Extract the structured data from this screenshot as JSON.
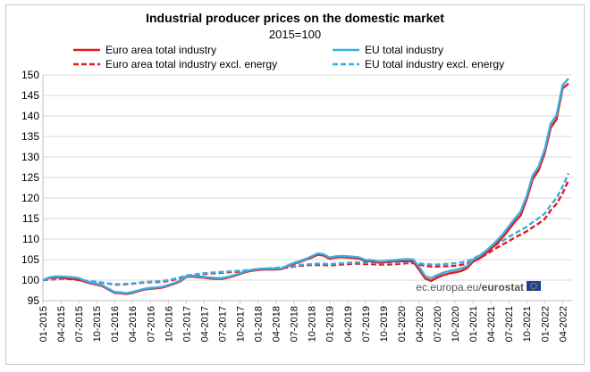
{
  "chart_data": {
    "type": "line",
    "title": "Industrial producer prices on the domestic market",
    "subtitle": "2015=100",
    "xlabel": "",
    "ylabel": "",
    "ylim": [
      95,
      150
    ],
    "yticks": [
      95,
      100,
      105,
      110,
      115,
      120,
      125,
      130,
      135,
      140,
      145,
      150
    ],
    "xtick_labels": [
      "01-2015",
      "04-2015",
      "07-2015",
      "10-2015",
      "01-2016",
      "04-2016",
      "07-2016",
      "10-2016",
      "01-2017",
      "04-2017",
      "07-2017",
      "10-2017",
      "01-2018",
      "04-2018",
      "07-2018",
      "10-2018",
      "01-2019",
      "04-2019",
      "07-2019",
      "10-2019",
      "01-2020",
      "04-2020",
      "07-2020",
      "10-2020",
      "01-2021",
      "04-2021",
      "07-2021",
      "10-2021",
      "01-2022",
      "04-2022"
    ],
    "grid": "horizontal",
    "legend_position": "top",
    "source": {
      "prefix": "ec.europa.eu/",
      "brand": "eurostat"
    },
    "colors": {
      "euro_area": "#e31a1c",
      "eu": "#3aaee0"
    },
    "series": [
      {
        "name": "Euro area total industry",
        "style": "solid",
        "color": "#e31a1c",
        "values": [
          100.0,
          100.5,
          100.6,
          100.6,
          100.4,
          100.3,
          100.1,
          99.6,
          99.2,
          98.9,
          98.5,
          97.7,
          96.9,
          96.8,
          96.6,
          96.9,
          97.3,
          97.7,
          97.9,
          98.0,
          98.2,
          98.6,
          99.1,
          99.7,
          100.8,
          100.9,
          100.7,
          100.6,
          100.4,
          100.3,
          100.3,
          100.6,
          101.0,
          101.5,
          102.0,
          102.3,
          102.5,
          102.6,
          102.6,
          102.6,
          102.7,
          103.4,
          104.0,
          104.4,
          105.0,
          105.5,
          106.2,
          106.0,
          105.2,
          105.5,
          105.6,
          105.5,
          105.4,
          105.2,
          104.6,
          104.6,
          104.3,
          104.3,
          104.5,
          104.6,
          104.6,
          104.6,
          104.5,
          102.5,
          100.4,
          99.8,
          100.6,
          101.2,
          101.6,
          101.9,
          102.2,
          102.9,
          104.5,
          105.2,
          106.3,
          107.6,
          108.9,
          110.5,
          112.3,
          114.2,
          115.8,
          119.7,
          124.6,
          126.8,
          130.9,
          137.1,
          139.2,
          146.7,
          147.9
        ]
      },
      {
        "name": "EU total industry",
        "style": "solid",
        "color": "#3aaee0",
        "values": [
          100.0,
          100.6,
          100.9,
          100.9,
          100.8,
          100.7,
          100.5,
          99.9,
          99.4,
          99.1,
          98.7,
          97.9,
          97.1,
          97.0,
          96.8,
          97.1,
          97.5,
          97.9,
          98.1,
          98.2,
          98.4,
          98.8,
          99.3,
          99.9,
          101.0,
          101.1,
          100.9,
          100.8,
          100.6,
          100.5,
          100.5,
          100.8,
          101.2,
          101.7,
          102.2,
          102.5,
          102.7,
          102.8,
          102.8,
          102.8,
          102.9,
          103.6,
          104.2,
          104.6,
          105.2,
          105.8,
          106.5,
          106.3,
          105.5,
          105.8,
          105.9,
          105.8,
          105.7,
          105.5,
          104.9,
          104.9,
          104.6,
          104.6,
          104.8,
          104.9,
          105.0,
          105.1,
          105.0,
          103.2,
          101.0,
          100.5,
          101.2,
          101.8,
          102.2,
          102.5,
          102.8,
          103.4,
          105.0,
          105.8,
          106.9,
          108.2,
          109.6,
          111.2,
          113.1,
          115.0,
          116.7,
          120.5,
          125.5,
          127.7,
          131.8,
          138.1,
          140.2,
          147.5,
          149.1
        ]
      },
      {
        "name": "Euro area total industry excl. energy",
        "style": "dashed",
        "color": "#e31a1c",
        "values": [
          100.0,
          100.1,
          100.2,
          100.3,
          100.3,
          100.2,
          100.0,
          99.8,
          99.6,
          99.5,
          99.3,
          99.1,
          98.9,
          98.9,
          99.0,
          99.1,
          99.3,
          99.4,
          99.5,
          99.5,
          99.6,
          99.8,
          100.1,
          100.5,
          100.9,
          101.1,
          101.3,
          101.5,
          101.6,
          101.7,
          101.8,
          101.9,
          102.0,
          102.1,
          102.2,
          102.3,
          102.5,
          102.6,
          102.7,
          102.8,
          102.9,
          103.1,
          103.3,
          103.5,
          103.6,
          103.7,
          103.7,
          103.7,
          103.6,
          103.7,
          103.8,
          103.9,
          104.0,
          104.0,
          103.9,
          103.9,
          103.8,
          103.8,
          103.8,
          103.9,
          104.0,
          104.1,
          104.1,
          103.8,
          103.5,
          103.3,
          103.3,
          103.4,
          103.4,
          103.5,
          103.7,
          104.0,
          104.6,
          105.3,
          106.1,
          107.0,
          107.9,
          108.7,
          109.5,
          110.4,
          111.1,
          111.9,
          112.9,
          113.8,
          114.9,
          117.0,
          118.6,
          121.1,
          124.4
        ]
      },
      {
        "name": "EU total industry excl. energy",
        "style": "dashed",
        "color": "#3aaee0",
        "values": [
          100.0,
          100.2,
          100.3,
          100.4,
          100.4,
          100.3,
          100.1,
          99.9,
          99.7,
          99.6,
          99.4,
          99.2,
          99.0,
          99.0,
          99.1,
          99.2,
          99.4,
          99.5,
          99.6,
          99.7,
          99.8,
          100.0,
          100.3,
          100.7,
          101.1,
          101.3,
          101.5,
          101.7,
          101.8,
          101.9,
          102.0,
          102.1,
          102.2,
          102.3,
          102.4,
          102.5,
          102.7,
          102.8,
          102.9,
          103.0,
          103.1,
          103.3,
          103.5,
          103.7,
          103.8,
          103.9,
          104.0,
          104.0,
          103.9,
          104.0,
          104.1,
          104.2,
          104.3,
          104.3,
          104.2,
          104.2,
          104.1,
          104.1,
          104.1,
          104.2,
          104.3,
          104.4,
          104.4,
          104.1,
          103.9,
          103.8,
          103.8,
          103.9,
          104.0,
          104.1,
          104.3,
          104.6,
          105.2,
          106.0,
          106.9,
          107.8,
          108.7,
          109.6,
          110.5,
          111.4,
          112.2,
          113.0,
          114.1,
          115.1,
          116.2,
          118.3,
          120.0,
          122.8,
          126.0
        ]
      }
    ]
  }
}
